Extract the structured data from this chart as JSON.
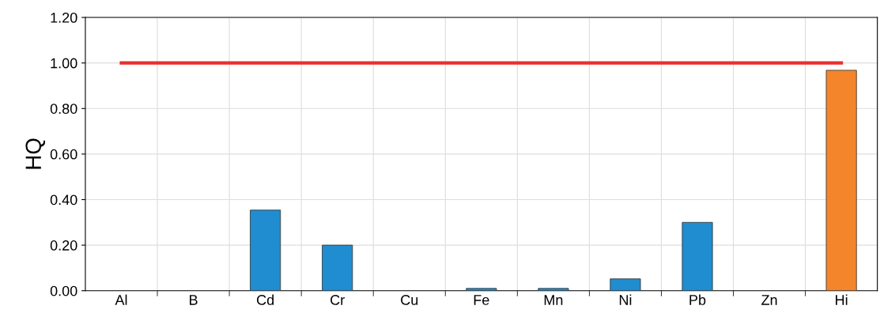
{
  "chart_data": {
    "type": "bar",
    "ylabel": "HQ",
    "categories": [
      "Al",
      "B",
      "Cd",
      "Cr",
      "Cu",
      "Fe",
      "Mn",
      "Ni",
      "Pb",
      "Zn",
      "Hi"
    ],
    "series": [
      {
        "values": [
          null,
          null,
          0.354,
          0.2,
          null,
          0.01,
          0.01,
          0.052,
          0.3,
          null,
          0.968
        ],
        "colors": [
          "#1f8dd0",
          "#1f8dd0",
          "#1f8dd0",
          "#1f8dd0",
          "#1f8dd0",
          "#1f8dd0",
          "#1f8dd0",
          "#1f8dd0",
          "#1f8dd0",
          "#1f8dd0",
          "#f5852a"
        ]
      },
      {
        "type": "line",
        "color": "#e8302d",
        "values": [
          1,
          1,
          1,
          1,
          1,
          1,
          1,
          1,
          1,
          1,
          1
        ]
      }
    ],
    "ylim": [
      0,
      1.2
    ],
    "yticks": [
      {
        "value": 0,
        "label": "0.00"
      },
      {
        "value": 0.2,
        "label": "0.20"
      },
      {
        "value": 0.4,
        "label": "0.40"
      },
      {
        "value": 0.6,
        "label": "0.60"
      },
      {
        "value": 0.8,
        "label": "0.80"
      },
      {
        "value": 1.0,
        "label": "1.00"
      },
      {
        "value": 1.2,
        "label": "1.20"
      }
    ],
    "grid": true
  }
}
